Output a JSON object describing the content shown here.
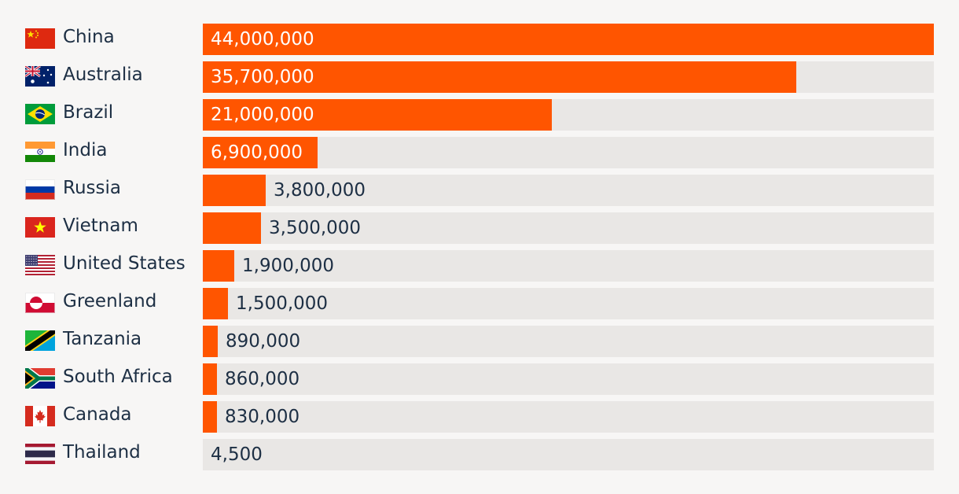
{
  "chart_data": {
    "type": "bar",
    "orientation": "horizontal",
    "title": "",
    "xlabel": "",
    "ylabel": "",
    "xlim": [
      0,
      44000000
    ],
    "categories": [
      "China",
      "Australia",
      "Brazil",
      "India",
      "Russia",
      "Vietnam",
      "United States",
      "Greenland",
      "Tanzania",
      "South Africa",
      "Canada",
      "Thailand"
    ],
    "values": [
      44000000,
      35700000,
      21000000,
      6900000,
      3800000,
      3500000,
      1900000,
      1500000,
      890000,
      860000,
      830000,
      4500
    ],
    "value_labels": [
      "44,000,000",
      "35,700,000",
      "21,000,000",
      "6,900,000",
      "3,800,000",
      "3,500,000",
      "1,900,000",
      "1,500,000",
      "890,000",
      "860,000",
      "830,000",
      "4,500"
    ],
    "flag_icons": [
      "china-flag-icon",
      "australia-flag-icon",
      "brazil-flag-icon",
      "india-flag-icon",
      "russia-flag-icon",
      "vietnam-flag-icon",
      "united-states-flag-icon",
      "greenland-flag-icon",
      "tanzania-flag-icon",
      "south-africa-flag-icon",
      "canada-flag-icon",
      "thailand-flag-icon"
    ],
    "colors": {
      "bar": "#ff5500",
      "track": "#e9e7e5",
      "label": "#1d2f44",
      "label_inside": "#ffffff"
    }
  }
}
